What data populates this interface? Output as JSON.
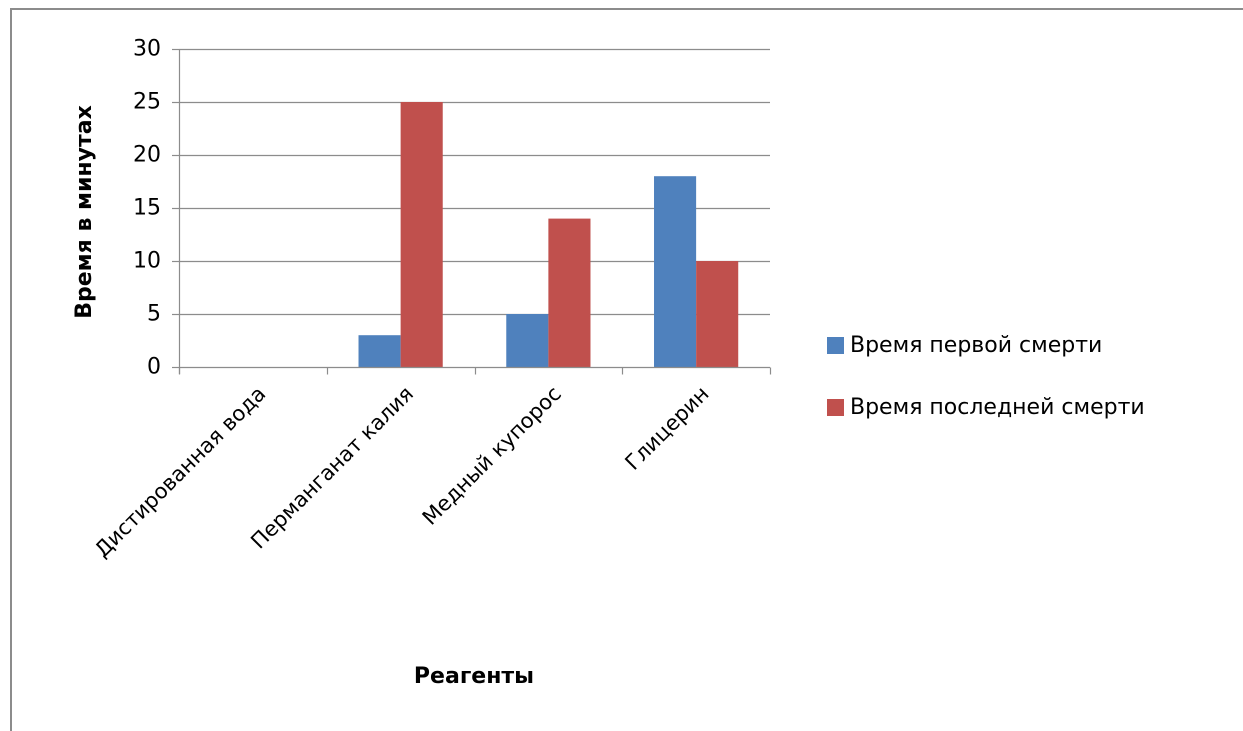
{
  "chart_data": {
    "type": "bar",
    "title": "",
    "xlabel": "Реагенты",
    "ylabel": "Время в минутах",
    "ylim": [
      0,
      30
    ],
    "yticks": [
      "0",
      "5",
      "10",
      "15",
      "20",
      "25",
      "30"
    ],
    "grid": true,
    "legend_position": "right",
    "categories": [
      "Дистированная вода",
      "Перманганат калия",
      "Медный купорос",
      "Глицерин"
    ],
    "series": [
      {
        "name": "Время первой смерти",
        "color": "#4f81bd",
        "values": [
          0,
          3,
          5,
          18
        ]
      },
      {
        "name": "Время последней смерти",
        "color": "#c0504d",
        "values": [
          0,
          25,
          14,
          10
        ]
      }
    ]
  }
}
